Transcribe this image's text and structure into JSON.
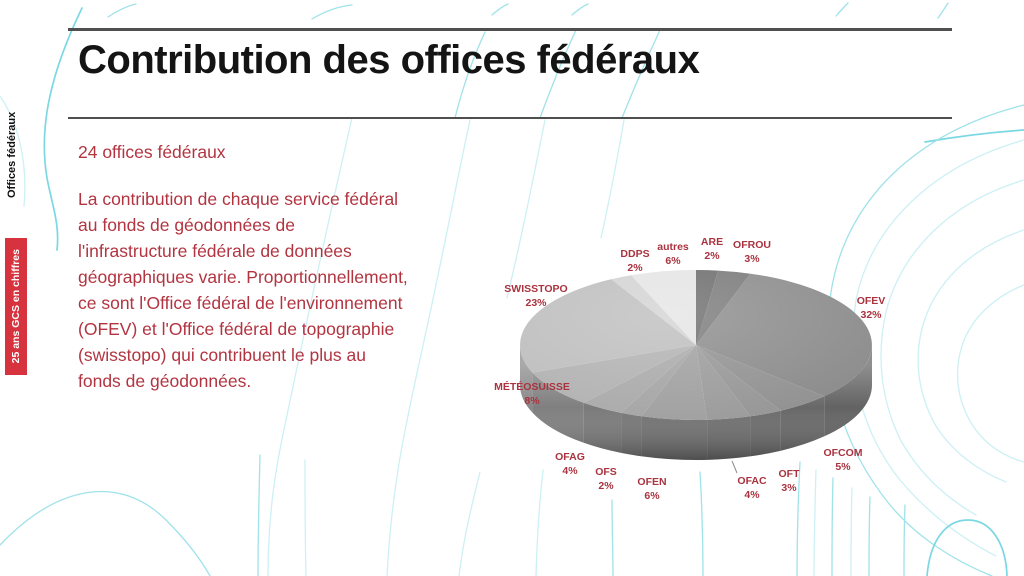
{
  "slide": {
    "title": "Contribution des offices fédéraux",
    "sidebar": {
      "section_label": "Offices fédéraux",
      "badge_label": "25 ans GCS en chiffres",
      "badge_color": "#d6333f"
    },
    "intro": "24 offices fédéraux",
    "paragraph": "La contribution de chaque service fédéral\nau fonds de géodonnées de\nl'infrastructure fédérale de données\ngéographiques varie. Proportionnellement,\nce sont l'Office fédéral de l'environnement\n(OFEV) et l'Office fédéral de topographie\n(swisstopo) qui contribuent le plus au\nfonds de géodonnées.",
    "text_color": "#b23440",
    "rule_color": "#4f4f4f",
    "contour_color": "#9fe2e9"
  },
  "chart_data": {
    "type": "pie",
    "style": "3d-grayscale",
    "direction": "clockwise",
    "start_angle_deg": 0,
    "unit": "%",
    "total": 100,
    "label_color": "#a9333f",
    "slices": [
      {
        "label": "ARE",
        "value": 2,
        "color": "#6b6b6b"
      },
      {
        "label": "OFROU",
        "value": 3,
        "color": "#787878"
      },
      {
        "label": "OFEV",
        "value": 32,
        "color": "#8a8a8a"
      },
      {
        "label": "OFCOM",
        "value": 5,
        "color": "#909090"
      },
      {
        "label": "OFT",
        "value": 3,
        "color": "#959595"
      },
      {
        "label": "OFAC",
        "value": 4,
        "color": "#9a9a9a"
      },
      {
        "label": "OFEN",
        "value": 6,
        "color": "#9f9f9f"
      },
      {
        "label": "OFS",
        "value": 2,
        "color": "#a4a4a4"
      },
      {
        "label": "OFAG",
        "value": 4,
        "color": "#a9a9a9"
      },
      {
        "label": "MÉTÉOSUISSE",
        "value": 8,
        "color": "#b1b1b1"
      },
      {
        "label": "SWISSTOPO",
        "value": 23,
        "color": "#bdbdbd"
      },
      {
        "label": "DDPS",
        "value": 2,
        "color": "#d2d2d2"
      },
      {
        "label": "autres",
        "value": 6,
        "color": "#e4e4e4"
      }
    ]
  }
}
